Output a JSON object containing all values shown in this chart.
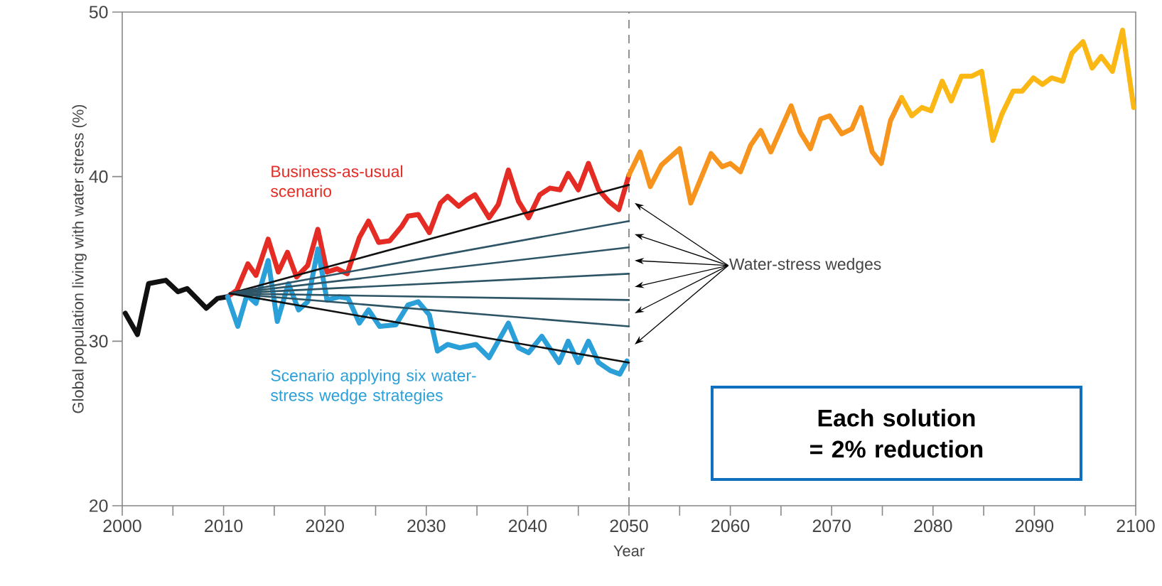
{
  "chart_data": {
    "type": "line",
    "xlabel": "Year",
    "ylabel": "Global population living with water stress (%)",
    "xlim": [
      2000,
      2100
    ],
    "ylim": [
      20,
      50
    ],
    "xticks": [
      2000,
      {
        "value": 2005,
        "label": null
      },
      2010,
      {
        "value": 2015,
        "label": null
      },
      2020,
      {
        "value": 2025,
        "label": null
      },
      2030,
      {
        "value": 2035,
        "label": null
      },
      2040,
      {
        "value": 2045,
        "label": null
      },
      2050,
      {
        "value": 2055,
        "label": null
      },
      2060,
      {
        "value": 2065,
        "label": null
      },
      2070,
      {
        "value": 2075,
        "label": null
      },
      2080,
      {
        "value": 2085,
        "label": null
      },
      2090,
      {
        "value": 2095,
        "label": null
      },
      2100
    ],
    "yticks": [
      20,
      30,
      40,
      50
    ],
    "grid": false,
    "marker": "none",
    "series": [
      {
        "color": "#111111",
        "x": [
          2000.3,
          2001.5,
          2002.6,
          2004.3,
          2005.5,
          2006.4,
          2008.3,
          2009.4,
          2010.4
        ],
        "values": [
          31.7,
          30.4,
          33.5,
          33.7,
          33.0,
          33.2,
          32.0,
          32.6,
          32.7
        ]
      },
      {
        "name": "Business-as-usual scenario",
        "color": "#e42b24",
        "x": [
          2010.4,
          2011.3,
          2012.4,
          2013.2,
          2014.4,
          2015.4,
          2016.3,
          2017.2,
          2018.3,
          2019.3,
          2020.2,
          2021.2,
          2022.2,
          2023.4,
          2024.3,
          2025.3,
          2026.4,
          2027.6,
          2028.2,
          2029.2,
          2030.3,
          2031.4,
          2032.1,
          2033.2,
          2034.0,
          2034.8,
          2036.2,
          2037.1,
          2038.1,
          2039.1,
          2040.1,
          2041.2,
          2042.2,
          2043.2,
          2044.0,
          2045.0,
          2046.0,
          2047.0,
          2048.0,
          2049.0,
          2050.0
        ],
        "values": [
          32.7,
          33.1,
          34.7,
          34.0,
          36.2,
          34.2,
          35.4,
          33.9,
          34.6,
          36.8,
          34.2,
          34.4,
          34.1,
          36.3,
          37.3,
          36.0,
          36.1,
          37.0,
          37.6,
          37.7,
          36.6,
          38.4,
          38.8,
          38.2,
          38.6,
          38.9,
          37.5,
          38.3,
          40.4,
          38.5,
          37.5,
          38.9,
          39.3,
          39.2,
          40.2,
          39.2,
          40.8,
          39.2,
          38.5,
          38.0,
          40.1
        ]
      },
      {
        "color": "#f7941d",
        "x": [
          2050.0,
          2051.1,
          2052.1,
          2053.2,
          2055.0,
          2056.1,
          2058.1,
          2059.2,
          2060.0,
          2061.0,
          2062.0,
          2063.0,
          2064.0,
          2066.0,
          2066.9,
          2067.9,
          2068.9,
          2069.8,
          2071.0,
          2072.0,
          2072.9,
          2074.0,
          2074.9,
          2075.8,
          2076.9
        ],
        "values": [
          40.1,
          41.5,
          39.4,
          40.7,
          41.7,
          38.4,
          41.4,
          40.6,
          40.8,
          40.3,
          41.9,
          42.8,
          41.5,
          44.3,
          42.7,
          41.7,
          43.5,
          43.7,
          42.6,
          42.9,
          44.2,
          41.5,
          40.8,
          43.4,
          44.8
        ]
      },
      {
        "color": "#fbb714",
        "x": [
          2076.9,
          2077.9,
          2078.9,
          2079.8,
          2080.9,
          2081.8,
          2082.8,
          2083.8,
          2084.8,
          2085.9,
          2086.8,
          2087.9,
          2088.8,
          2089.9,
          2090.8,
          2091.7,
          2092.8,
          2093.7,
          2094.8,
          2095.7,
          2096.6,
          2097.7,
          2098.7,
          2099.8
        ],
        "values": [
          44.8,
          43.7,
          44.2,
          44.0,
          45.8,
          44.6,
          46.1,
          46.1,
          46.4,
          42.2,
          43.8,
          45.2,
          45.2,
          46.0,
          45.6,
          46.0,
          45.8,
          47.5,
          48.2,
          46.6,
          47.3,
          46.4,
          48.9,
          44.2
        ]
      },
      {
        "name": "Scenario applying six water-stress wedge strategies",
        "color": "#2a9fd8",
        "x": [
          2010.4,
          2011.4,
          2012.3,
          2013.2,
          2014.4,
          2015.3,
          2016.4,
          2017.4,
          2018.3,
          2019.3,
          2020.2,
          2021.4,
          2022.3,
          2023.4,
          2024.3,
          2025.4,
          2027.0,
          2028.2,
          2029.2,
          2030.3,
          2031.1,
          2032.1,
          2033.3,
          2034.9,
          2036.2,
          2038.1,
          2039.1,
          2040.1,
          2041.4,
          2043.1,
          2044.0,
          2045.0,
          2046.0,
          2047.0,
          2048.2,
          2049.1,
          2049.8
        ],
        "values": [
          32.7,
          30.9,
          32.8,
          32.3,
          34.9,
          31.2,
          33.5,
          31.9,
          32.4,
          35.6,
          32.5,
          32.7,
          32.6,
          31.1,
          31.9,
          30.9,
          31.0,
          32.2,
          32.4,
          31.6,
          29.4,
          29.8,
          29.6,
          29.8,
          29.0,
          31.1,
          29.6,
          29.3,
          30.3,
          28.7,
          30.0,
          28.7,
          30.0,
          28.7,
          28.2,
          28.0,
          28.8
        ]
      },
      {
        "color": "#111111",
        "x": [
          2010.6,
          2050
        ],
        "values": [
          32.9,
          39.5
        ]
      },
      {
        "color": "#2e5566",
        "x": [
          2010.6,
          2050
        ],
        "values": [
          32.9,
          37.3
        ]
      },
      {
        "color": "#2e5566",
        "x": [
          2010.6,
          2050
        ],
        "values": [
          32.9,
          35.7
        ]
      },
      {
        "color": "#2e5566",
        "x": [
          2010.6,
          2050
        ],
        "values": [
          32.9,
          34.1
        ]
      },
      {
        "color": "#2e5566",
        "x": [
          2010.6,
          2050
        ],
        "values": [
          32.9,
          32.5
        ]
      },
      {
        "color": "#2e5566",
        "x": [
          2010.6,
          2050
        ],
        "values": [
          32.9,
          30.9
        ]
      },
      {
        "color": "#111111",
        "x": [
          2010.6,
          2050
        ],
        "values": [
          32.9,
          28.7
        ]
      }
    ],
    "ref_lines": [
      {
        "axis": "x",
        "value": 2050,
        "color": "#777777",
        "line_style": "dashed"
      }
    ],
    "annotations": [
      "Water-stress wedges",
      "**Each solution = 2% reduction**"
    ]
  }
}
